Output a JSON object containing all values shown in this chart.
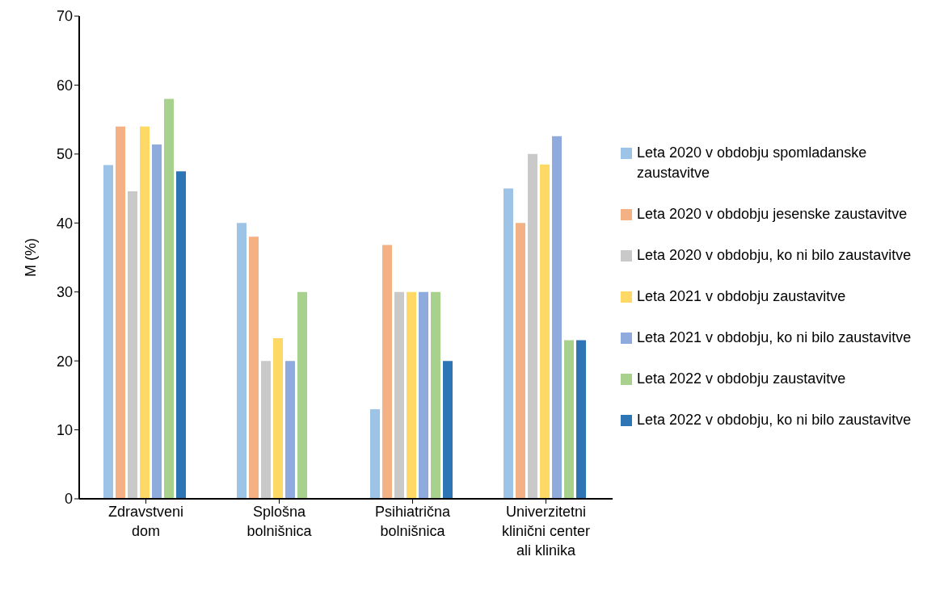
{
  "chart_data": {
    "type": "bar",
    "ylabel": "M (%)",
    "categories": [
      "Zdravstveni dom",
      "Splošna bolnišnica",
      "Psihiatrična bolnišnica",
      "Univerzitetni klinični center ali klinika"
    ],
    "ylim": [
      0,
      70
    ],
    "yticks": [
      0,
      10,
      20,
      30,
      40,
      50,
      60,
      70
    ],
    "grid": false,
    "legend": "right",
    "series": [
      {
        "name": "Leta 2020 v obdobju spomladanske zaustavitve",
        "color": "#9dc3e6",
        "values": [
          48.4,
          40,
          13,
          45
        ]
      },
      {
        "name": "Leta 2020 v obdobju jesenske zaustavitve",
        "color": "#f4b183",
        "values": [
          54,
          38,
          36.8,
          40
        ]
      },
      {
        "name": "Leta 2020 v obdobju, ko ni bilo zaustavitve",
        "color": "#c9c9c9",
        "values": [
          44.6,
          20,
          30,
          50
        ]
      },
      {
        "name": "Leta 2021 v obdobju zaustavitve",
        "color": "#ffd966",
        "values": [
          54,
          23.3,
          30,
          48.5
        ]
      },
      {
        "name": "Leta 2021 v obdobju, ko ni bilo zaustavitve",
        "color": "#8faadc",
        "values": [
          51.4,
          20,
          30,
          52.6
        ]
      },
      {
        "name": "Leta 2022 v obdobju zaustavitve",
        "color": "#a9d18e",
        "values": [
          58,
          30,
          30,
          23
        ]
      },
      {
        "name": "Leta 2022 v obdobju, ko ni bilo zaustavitve",
        "color": "#2e75b6",
        "values": [
          47.5,
          null,
          20,
          23
        ]
      }
    ]
  }
}
